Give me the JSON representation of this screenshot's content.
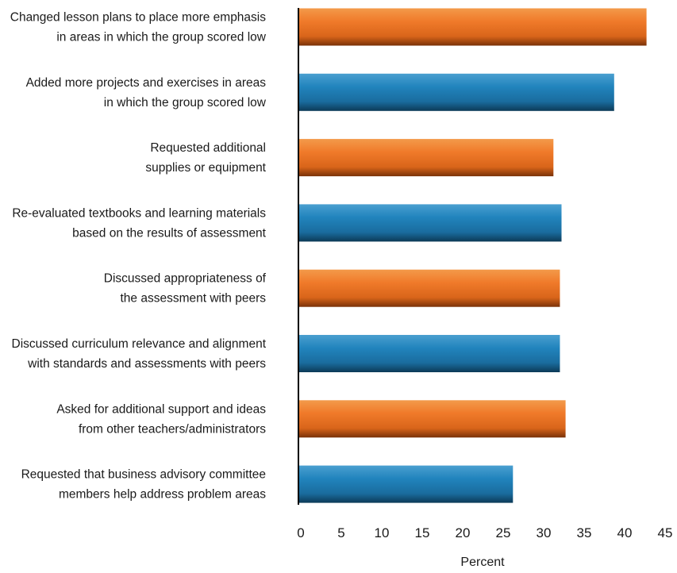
{
  "chart_data": {
    "type": "bar",
    "orientation": "horizontal",
    "categories": [
      [
        "Changed lesson plans to place more emphasis",
        "in areas in which the group scored low"
      ],
      [
        "Added more projects and exercises in areas",
        "in which the group scored low"
      ],
      [
        "Requested additional",
        "supplies or equipment"
      ],
      [
        "Re-evaluated textbooks and learning materials",
        "based on the results of assessment"
      ],
      [
        "Discussed appropriateness of",
        "the assessment with peers"
      ],
      [
        "Discussed curriculum relevance and alignment",
        "with standards and assessments with peers"
      ],
      [
        "Asked for additional support and ideas",
        "from other teachers/administrators"
      ],
      [
        "Requested that business advisory committee",
        "members help address problem areas"
      ]
    ],
    "values": [
      43,
      39,
      31.5,
      32.5,
      32.3,
      32.3,
      33,
      26.5
    ],
    "bar_colors": [
      "#f07020",
      "#1f7fb8",
      "#f07020",
      "#1f7fb8",
      "#f07020",
      "#1f7fb8",
      "#f07020",
      "#1f7fb8"
    ],
    "xlim": [
      0,
      45
    ],
    "xticks": [
      0,
      5,
      10,
      15,
      20,
      25,
      30,
      35,
      40,
      45
    ],
    "xlabel": "Percent",
    "title": "",
    "grid": false,
    "legend": "none"
  }
}
